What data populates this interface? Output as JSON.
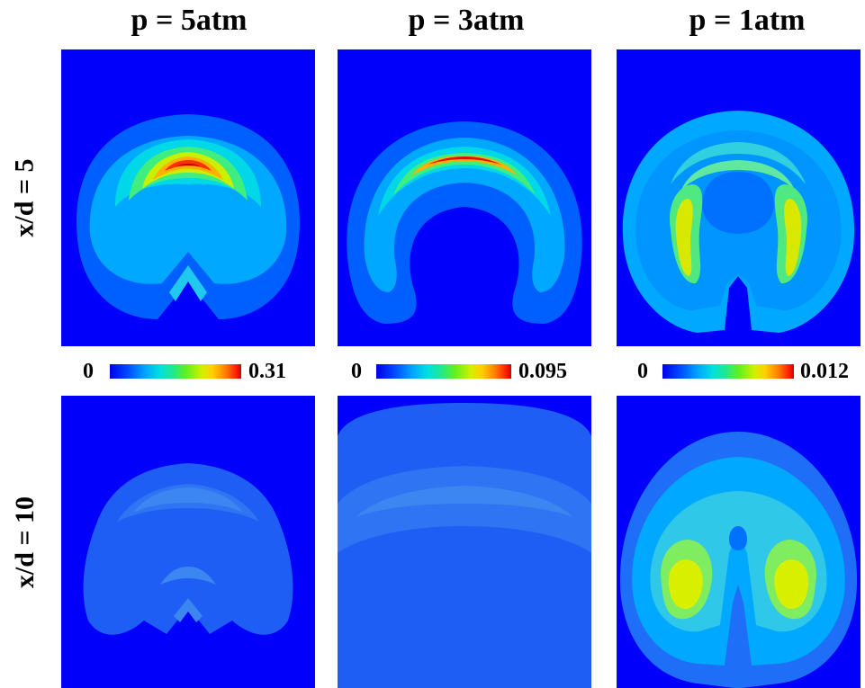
{
  "columns": [
    {
      "title": "p = 5atm"
    },
    {
      "title": "p = 3atm"
    },
    {
      "title": "p = 1atm"
    }
  ],
  "rows": [
    {
      "label": "x/d = 5"
    },
    {
      "label": "x/d = 10"
    }
  ],
  "colorbars": [
    {
      "min": "0",
      "max": "0.31"
    },
    {
      "min": "0",
      "max": "0.095"
    },
    {
      "min": "0",
      "max": "0.012"
    }
  ],
  "colors": {
    "background_field": "#0000fb",
    "colormap": [
      "#0000e6",
      "#0040ff",
      "#00a0ff",
      "#00e0e0",
      "#20e890",
      "#60f020",
      "#d0f000",
      "#ffd000",
      "#ff8000",
      "#ff2000",
      "#d00000"
    ]
  }
}
